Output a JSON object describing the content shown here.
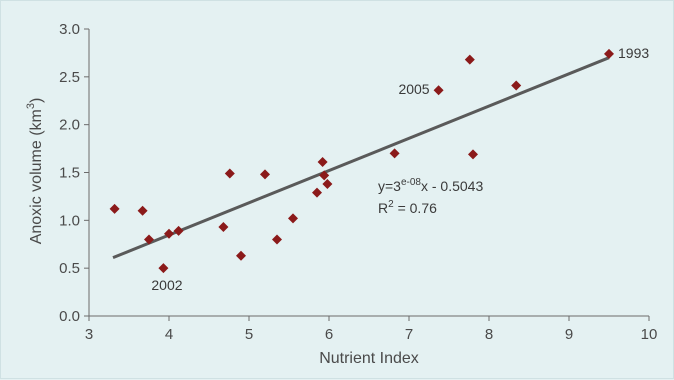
{
  "chart_data": {
    "type": "scatter",
    "xlabel": "Nutrient Index",
    "ylabel_main": "Anoxic volume (km",
    "ylabel_sup": "3",
    "ylabel_end": ")",
    "xlim": [
      3,
      10
    ],
    "ylim": [
      0,
      3
    ],
    "xticks": [
      "3",
      "4",
      "5",
      "6",
      "7",
      "8",
      "9",
      "10"
    ],
    "yticks": [
      "0.0",
      "0.5",
      "1.0",
      "1.5",
      "2.0",
      "2.5",
      "3.0"
    ],
    "grid": false,
    "marker_color": "#8b1a1a",
    "trend_color": "#5a5a5a",
    "points": [
      {
        "x": 3.32,
        "y": 1.12
      },
      {
        "x": 3.67,
        "y": 1.1
      },
      {
        "x": 3.75,
        "y": 0.8
      },
      {
        "x": 3.93,
        "y": 0.5
      },
      {
        "x": 4.0,
        "y": 0.86
      },
      {
        "x": 4.12,
        "y": 0.89
      },
      {
        "x": 4.68,
        "y": 0.93
      },
      {
        "x": 4.76,
        "y": 1.49
      },
      {
        "x": 4.9,
        "y": 0.63
      },
      {
        "x": 5.2,
        "y": 1.48
      },
      {
        "x": 5.35,
        "y": 0.8
      },
      {
        "x": 5.55,
        "y": 1.02
      },
      {
        "x": 5.85,
        "y": 1.29
      },
      {
        "x": 5.92,
        "y": 1.61
      },
      {
        "x": 5.94,
        "y": 1.47
      },
      {
        "x": 5.98,
        "y": 1.38
      },
      {
        "x": 6.82,
        "y": 1.7
      },
      {
        "x": 7.37,
        "y": 2.36
      },
      {
        "x": 7.76,
        "y": 2.68
      },
      {
        "x": 7.8,
        "y": 1.69
      },
      {
        "x": 8.34,
        "y": 2.41
      },
      {
        "x": 9.5,
        "y": 2.74
      }
    ],
    "trendline": {
      "x0": 3.3,
      "y0": 0.61,
      "x1": 9.5,
      "y1": 2.7
    },
    "annotations": [
      {
        "text": "1993",
        "x": 9.5,
        "y": 2.74
      },
      {
        "text": "2005",
        "x": 7.37,
        "y": 2.36
      },
      {
        "text": "2002",
        "x": 3.93,
        "y": 0.5
      }
    ],
    "equation": {
      "prefix": "y=3",
      "sup": "e-08",
      "suffix": "x - 0.5043",
      "r2_prefix": "R",
      "r2_sup": "2",
      "r2_suffix": " = 0.76"
    }
  }
}
